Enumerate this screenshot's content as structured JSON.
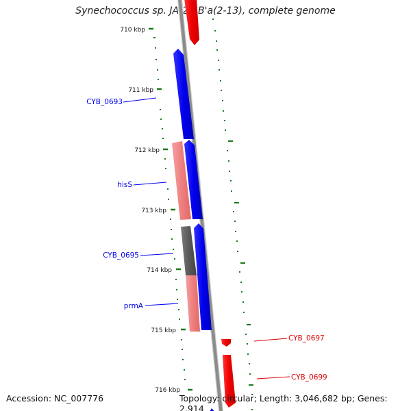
{
  "title": "Synechococcus sp. JA-2-3B'a(2-13), complete genome",
  "footer": {
    "accession": "Accession: NC_007776",
    "topology": "Topology: circular; Length: 3,046,682 bp; Genes: 2,914"
  },
  "ticks": [
    "710 kbp",
    "711 kbp",
    "712 kbp",
    "713 kbp",
    "714 kbp",
    "715 kbp",
    "716 kbp"
  ],
  "genes": [
    {
      "label": "CYB_0693",
      "color": "#0000ee"
    },
    {
      "label": "hisS",
      "color": "#0000ee"
    },
    {
      "label": "CYB_0695",
      "color": "#0000ee"
    },
    {
      "label": "prmA",
      "color": "#0000ee"
    },
    {
      "label": "CYB_0697",
      "color": "#dd0000"
    },
    {
      "label": "CYB_0699",
      "color": "#dd0000"
    }
  ],
  "colors": {
    "forward_strand": "#0000ff",
    "reverse_strand": "#ff0000",
    "rna": "#f08080",
    "other": "#666666",
    "backbone": "#8c8c8c",
    "ticks": "#1a7a1a"
  }
}
